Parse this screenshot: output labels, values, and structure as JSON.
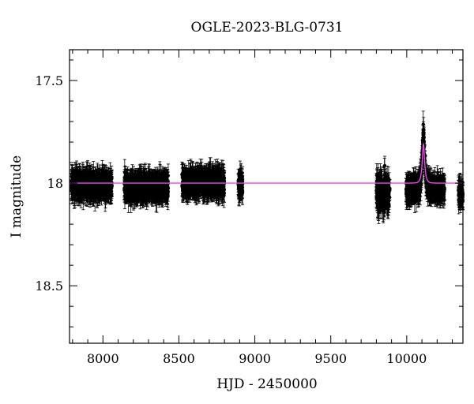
{
  "chart_data": {
    "type": "scatter",
    "title": "OGLE-2023-BLG-0731",
    "xlabel": "HJD - 2450000",
    "ylabel": "I magnitude",
    "xlim": [
      7780,
      10370
    ],
    "ylim": [
      18.78,
      17.35
    ],
    "y_inverted": true,
    "x_ticks": [
      8000,
      8500,
      9000,
      9500,
      10000
    ],
    "x_tick_labels": [
      "8000",
      "8500",
      "9000",
      "9500",
      "10000"
    ],
    "y_ticks": [
      17.5,
      18,
      18.5
    ],
    "y_tick_labels": [
      "17.5",
      "18",
      "18.5"
    ],
    "baseline_mag": 18.0,
    "typical_error": 0.05,
    "seasons": [
      {
        "start": 7790,
        "end": 8060,
        "mean": 18.01,
        "scatter": 0.035
      },
      {
        "start": 8140,
        "end": 8430,
        "mean": 18.02,
        "scatter": 0.035
      },
      {
        "start": 8520,
        "end": 8800,
        "mean": 18.0,
        "scatter": 0.035
      },
      {
        "start": 8890,
        "end": 8920,
        "mean": 18.01,
        "scatter": 0.035
      },
      {
        "start": 9800,
        "end": 9890,
        "mean": 18.05,
        "scatter": 0.06
      },
      {
        "start": 9995,
        "end": 10250,
        "mean": 18.03,
        "scatter": 0.03
      },
      {
        "start": 10340,
        "end": 10370,
        "mean": 18.05,
        "scatter": 0.025
      }
    ],
    "event": {
      "t0": 10110,
      "peak_mag": 17.77,
      "tE": 15
    },
    "model": {
      "color": "#ee44ee",
      "baseline_mag": 18.0,
      "t0": 10110,
      "peak_mag": 17.81,
      "tE": 14
    },
    "grid": false,
    "legend": "none"
  }
}
